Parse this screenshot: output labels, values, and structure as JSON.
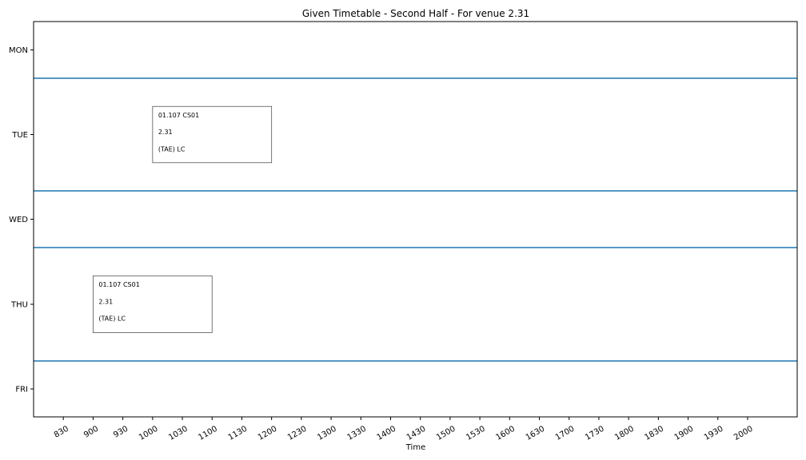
{
  "chart_data": {
    "type": "timetable",
    "title": "Given Timetable - Second Half - For venue 2.31",
    "xlabel": "Time",
    "ylabel": "",
    "xlim": [
      800,
      2050
    ],
    "x_ticks": [
      830,
      900,
      930,
      1000,
      1030,
      1100,
      1130,
      1200,
      1230,
      1300,
      1330,
      1400,
      1430,
      1500,
      1530,
      1600,
      1630,
      1700,
      1730,
      1800,
      1830,
      1900,
      1930,
      2000
    ],
    "days": [
      "MON",
      "TUE",
      "WED",
      "THU",
      "FRI"
    ],
    "grid": false,
    "legend": "none",
    "separator_color": "#1f77b4",
    "events": [
      {
        "day": "TUE",
        "start": 1000,
        "end": 1200,
        "lines": [
          "01.107 CS01",
          "2.31",
          "(TAE) LC"
        ]
      },
      {
        "day": "THU",
        "start": 900,
        "end": 1100,
        "lines": [
          "01.107 CS01",
          "2.31",
          "(TAE) LC"
        ]
      }
    ]
  }
}
